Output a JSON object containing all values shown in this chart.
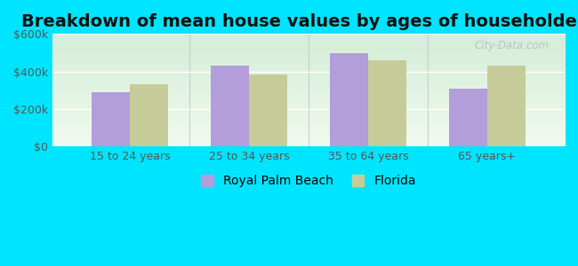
{
  "title": "Breakdown of mean house values by ages of householders",
  "categories": [
    "15 to 24 years",
    "25 to 34 years",
    "35 to 64 years",
    "65 years+"
  ],
  "series": {
    "Royal Palm Beach": [
      290000,
      430000,
      495000,
      310000
    ],
    "Florida": [
      330000,
      385000,
      460000,
      430000
    ]
  },
  "bar_colors": {
    "Royal Palm Beach": "#b39ddb",
    "Florida": "#c5cc9a"
  },
  "ylim": [
    0,
    600000
  ],
  "yticks": [
    0,
    200000,
    400000,
    600000
  ],
  "ytick_labels": [
    "$0",
    "$200k",
    "$400k",
    "$600k"
  ],
  "background_color": "#00e5ff",
  "grad_top": "#d4edd8",
  "grad_bottom": "#f0faee",
  "title_fontsize": 14,
  "tick_fontsize": 9,
  "legend_fontsize": 10,
  "bar_width": 0.32,
  "watermark": "City-Data.com"
}
